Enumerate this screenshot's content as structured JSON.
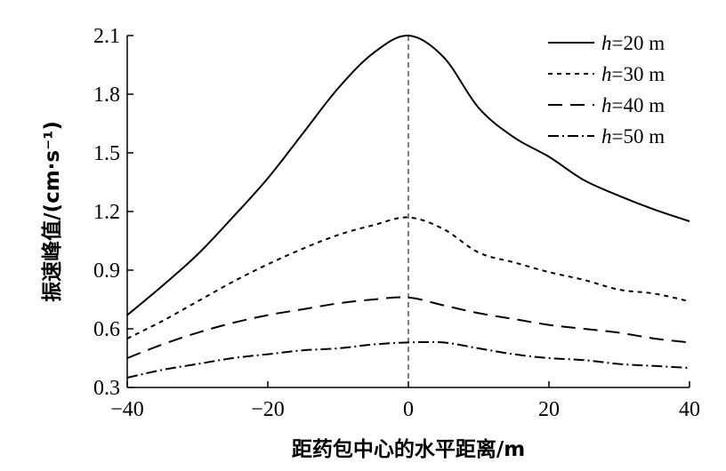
{
  "chart_data": {
    "type": "line",
    "xlabel": "距药包中心的水平距离/m",
    "ylabel": "振速峰值/(cm·s⁻¹)",
    "xlim": [
      -40,
      40
    ],
    "ylim": [
      0.3,
      2.1
    ],
    "xticks": [
      -40,
      -20,
      0,
      20,
      40
    ],
    "xtick_labels": [
      "−40",
      "−20",
      "0",
      "20",
      "40"
    ],
    "yticks": [
      0.3,
      0.6,
      0.9,
      1.2,
      1.5,
      1.8,
      2.1
    ],
    "ytick_labels": [
      "0.3",
      "0.6",
      "0.9",
      "1.2",
      "1.5",
      "1.8",
      "2.1"
    ],
    "grid": false,
    "legend_position": "top-right",
    "reference_line": {
      "x": 0,
      "style": "dashed"
    },
    "series": [
      {
        "name": "h=20 m",
        "legend_var": "h",
        "legend_rest": "=20 m",
        "dash": "none",
        "x": [
          -40,
          -35,
          -30,
          -25,
          -20,
          -15,
          -10,
          -5,
          0,
          5,
          10,
          15,
          20,
          25,
          30,
          35,
          40
        ],
        "y": [
          0.67,
          0.82,
          0.98,
          1.17,
          1.37,
          1.6,
          1.83,
          2.01,
          2.1,
          1.99,
          1.73,
          1.58,
          1.48,
          1.36,
          1.28,
          1.21,
          1.15
        ]
      },
      {
        "name": "h=30 m",
        "legend_var": "h",
        "legend_rest": "=30 m",
        "dash": "5,5",
        "x": [
          -40,
          -35,
          -30,
          -25,
          -20,
          -15,
          -10,
          -5,
          0,
          5,
          10,
          15,
          20,
          25,
          30,
          35,
          40
        ],
        "y": [
          0.55,
          0.64,
          0.74,
          0.84,
          0.93,
          1.01,
          1.08,
          1.13,
          1.17,
          1.11,
          0.99,
          0.94,
          0.89,
          0.85,
          0.8,
          0.78,
          0.74
        ]
      },
      {
        "name": "h=40 m",
        "legend_var": "h",
        "legend_rest": "=40 m",
        "dash": "16,9",
        "x": [
          -40,
          -35,
          -30,
          -25,
          -20,
          -15,
          -10,
          -5,
          0,
          5,
          10,
          15,
          20,
          25,
          30,
          35,
          40
        ],
        "y": [
          0.45,
          0.52,
          0.58,
          0.63,
          0.67,
          0.7,
          0.73,
          0.75,
          0.76,
          0.72,
          0.68,
          0.65,
          0.62,
          0.6,
          0.58,
          0.55,
          0.53
        ]
      },
      {
        "name": "h=50 m",
        "legend_var": "h",
        "legend_rest": "=50 m",
        "dash": "12,4,2,4",
        "x": [
          -40,
          -35,
          -30,
          -25,
          -20,
          -15,
          -10,
          -5,
          0,
          5,
          10,
          15,
          20,
          25,
          30,
          35,
          40
        ],
        "y": [
          0.35,
          0.39,
          0.42,
          0.45,
          0.47,
          0.49,
          0.5,
          0.52,
          0.53,
          0.53,
          0.5,
          0.47,
          0.45,
          0.44,
          0.42,
          0.41,
          0.4
        ]
      }
    ]
  }
}
